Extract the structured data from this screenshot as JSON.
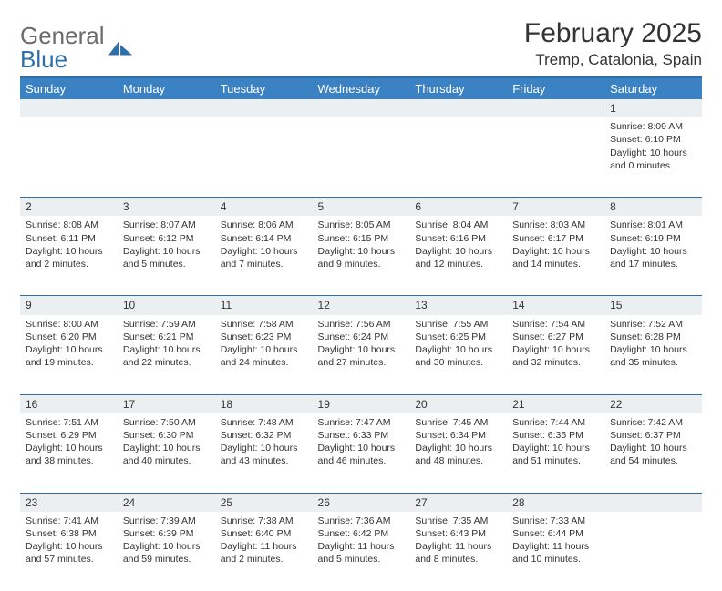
{
  "logo": {
    "word1": "General",
    "word2": "Blue"
  },
  "title": "February 2025",
  "location": "Tremp, Catalonia, Spain",
  "colors": {
    "header_bar": "#3b82c4",
    "rule": "#2f6fa7",
    "daynum_bg": "#eceff1",
    "logo_gray": "#6b6b6b",
    "logo_blue": "#2f6fa7"
  },
  "weekdays": [
    "Sunday",
    "Monday",
    "Tuesday",
    "Wednesday",
    "Thursday",
    "Friday",
    "Saturday"
  ],
  "weeks": [
    [
      {
        "n": "",
        "t": ""
      },
      {
        "n": "",
        "t": ""
      },
      {
        "n": "",
        "t": ""
      },
      {
        "n": "",
        "t": ""
      },
      {
        "n": "",
        "t": ""
      },
      {
        "n": "",
        "t": ""
      },
      {
        "n": "1",
        "t": "Sunrise: 8:09 AM\nSunset: 6:10 PM\nDaylight: 10 hours and 0 minutes."
      }
    ],
    [
      {
        "n": "2",
        "t": "Sunrise: 8:08 AM\nSunset: 6:11 PM\nDaylight: 10 hours and 2 minutes."
      },
      {
        "n": "3",
        "t": "Sunrise: 8:07 AM\nSunset: 6:12 PM\nDaylight: 10 hours and 5 minutes."
      },
      {
        "n": "4",
        "t": "Sunrise: 8:06 AM\nSunset: 6:14 PM\nDaylight: 10 hours and 7 minutes."
      },
      {
        "n": "5",
        "t": "Sunrise: 8:05 AM\nSunset: 6:15 PM\nDaylight: 10 hours and 9 minutes."
      },
      {
        "n": "6",
        "t": "Sunrise: 8:04 AM\nSunset: 6:16 PM\nDaylight: 10 hours and 12 minutes."
      },
      {
        "n": "7",
        "t": "Sunrise: 8:03 AM\nSunset: 6:17 PM\nDaylight: 10 hours and 14 minutes."
      },
      {
        "n": "8",
        "t": "Sunrise: 8:01 AM\nSunset: 6:19 PM\nDaylight: 10 hours and 17 minutes."
      }
    ],
    [
      {
        "n": "9",
        "t": "Sunrise: 8:00 AM\nSunset: 6:20 PM\nDaylight: 10 hours and 19 minutes."
      },
      {
        "n": "10",
        "t": "Sunrise: 7:59 AM\nSunset: 6:21 PM\nDaylight: 10 hours and 22 minutes."
      },
      {
        "n": "11",
        "t": "Sunrise: 7:58 AM\nSunset: 6:23 PM\nDaylight: 10 hours and 24 minutes."
      },
      {
        "n": "12",
        "t": "Sunrise: 7:56 AM\nSunset: 6:24 PM\nDaylight: 10 hours and 27 minutes."
      },
      {
        "n": "13",
        "t": "Sunrise: 7:55 AM\nSunset: 6:25 PM\nDaylight: 10 hours and 30 minutes."
      },
      {
        "n": "14",
        "t": "Sunrise: 7:54 AM\nSunset: 6:27 PM\nDaylight: 10 hours and 32 minutes."
      },
      {
        "n": "15",
        "t": "Sunrise: 7:52 AM\nSunset: 6:28 PM\nDaylight: 10 hours and 35 minutes."
      }
    ],
    [
      {
        "n": "16",
        "t": "Sunrise: 7:51 AM\nSunset: 6:29 PM\nDaylight: 10 hours and 38 minutes."
      },
      {
        "n": "17",
        "t": "Sunrise: 7:50 AM\nSunset: 6:30 PM\nDaylight: 10 hours and 40 minutes."
      },
      {
        "n": "18",
        "t": "Sunrise: 7:48 AM\nSunset: 6:32 PM\nDaylight: 10 hours and 43 minutes."
      },
      {
        "n": "19",
        "t": "Sunrise: 7:47 AM\nSunset: 6:33 PM\nDaylight: 10 hours and 46 minutes."
      },
      {
        "n": "20",
        "t": "Sunrise: 7:45 AM\nSunset: 6:34 PM\nDaylight: 10 hours and 48 minutes."
      },
      {
        "n": "21",
        "t": "Sunrise: 7:44 AM\nSunset: 6:35 PM\nDaylight: 10 hours and 51 minutes."
      },
      {
        "n": "22",
        "t": "Sunrise: 7:42 AM\nSunset: 6:37 PM\nDaylight: 10 hours and 54 minutes."
      }
    ],
    [
      {
        "n": "23",
        "t": "Sunrise: 7:41 AM\nSunset: 6:38 PM\nDaylight: 10 hours and 57 minutes."
      },
      {
        "n": "24",
        "t": "Sunrise: 7:39 AM\nSunset: 6:39 PM\nDaylight: 10 hours and 59 minutes."
      },
      {
        "n": "25",
        "t": "Sunrise: 7:38 AM\nSunset: 6:40 PM\nDaylight: 11 hours and 2 minutes."
      },
      {
        "n": "26",
        "t": "Sunrise: 7:36 AM\nSunset: 6:42 PM\nDaylight: 11 hours and 5 minutes."
      },
      {
        "n": "27",
        "t": "Sunrise: 7:35 AM\nSunset: 6:43 PM\nDaylight: 11 hours and 8 minutes."
      },
      {
        "n": "28",
        "t": "Sunrise: 7:33 AM\nSunset: 6:44 PM\nDaylight: 11 hours and 10 minutes."
      },
      {
        "n": "",
        "t": ""
      }
    ]
  ]
}
